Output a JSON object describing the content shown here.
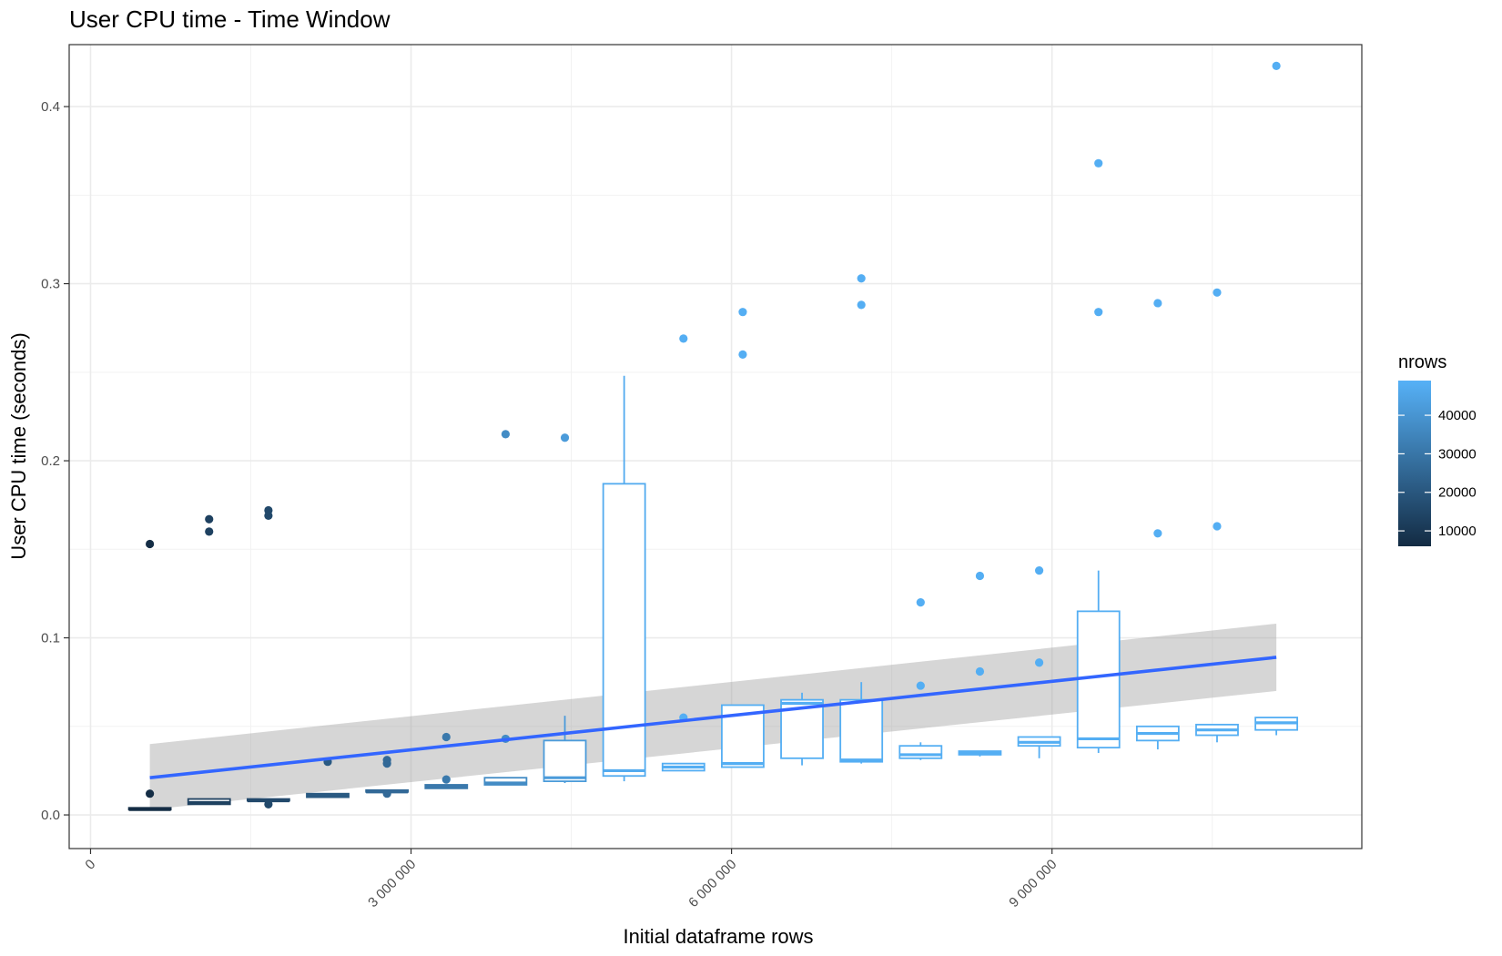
{
  "colors": {
    "low": "#132B43",
    "high": "#56B1F7",
    "trend": "#3366FF",
    "ribbon": "#999999",
    "grid_major": "#ebebeb",
    "grid_minor": "#f2f2f2",
    "panel_border": "#333333"
  },
  "chart_data": {
    "type": "boxplot",
    "title": "User CPU time - Time Window",
    "xlabel": "Initial dataframe rows",
    "ylabel": "User CPU time (seconds)",
    "xlim": [
      -200000,
      11900000
    ],
    "ylim": [
      -0.019,
      0.435
    ],
    "x_ticks": [
      0,
      3000000,
      6000000,
      9000000
    ],
    "x_tick_labels": [
      "0",
      "3 000 000",
      "6 000 000",
      "9 000 000"
    ],
    "x_minor_ticks": [
      1500000,
      4500000,
      7500000,
      10500000
    ],
    "y_ticks": [
      0.0,
      0.1,
      0.2,
      0.3,
      0.4
    ],
    "y_tick_labels": [
      "0.0",
      "0.1",
      "0.2",
      "0.3",
      "0.4"
    ],
    "y_minor_ticks": [
      0.05,
      0.15,
      0.25,
      0.35
    ],
    "grid": true,
    "legend": {
      "title": "nrows",
      "position": "right",
      "ticks": [
        10000,
        20000,
        30000,
        40000
      ],
      "tick_labels": [
        "10000",
        "20000",
        "30000",
        "40000"
      ],
      "range": [
        6000,
        49000
      ]
    },
    "boxes": [
      {
        "x": 555000,
        "nrows": 6500,
        "whisker_low": 0.003,
        "q1": 0.003,
        "median": 0.003,
        "q3": 0.004,
        "whisker_high": 0.004
      },
      {
        "x": 1110000,
        "nrows": 13000,
        "whisker_low": 0.006,
        "q1": 0.006,
        "median": 0.007,
        "q3": 0.009,
        "whisker_high": 0.009
      },
      {
        "x": 1665000,
        "nrows": 15500,
        "whisker_low": 0.008,
        "q1": 0.008,
        "median": 0.008,
        "q3": 0.009,
        "whisker_high": 0.009
      },
      {
        "x": 2220000,
        "nrows": 21000,
        "whisker_low": 0.01,
        "q1": 0.01,
        "median": 0.011,
        "q3": 0.012,
        "whisker_high": 0.012
      },
      {
        "x": 2775000,
        "nrows": 26000,
        "whisker_low": 0.012,
        "q1": 0.013,
        "median": 0.013,
        "q3": 0.014,
        "whisker_high": 0.014
      },
      {
        "x": 3330000,
        "nrows": 31000,
        "whisker_low": 0.015,
        "q1": 0.015,
        "median": 0.016,
        "q3": 0.017,
        "whisker_high": 0.017
      },
      {
        "x": 3885000,
        "nrows": 37000,
        "whisker_low": 0.017,
        "q1": 0.017,
        "median": 0.018,
        "q3": 0.021,
        "whisker_high": 0.021
      },
      {
        "x": 4440000,
        "nrows": 42000,
        "whisker_low": 0.018,
        "q1": 0.019,
        "median": 0.021,
        "q3": 0.042,
        "whisker_high": 0.056
      },
      {
        "x": 4995000,
        "nrows": 47000,
        "whisker_low": 0.019,
        "q1": 0.022,
        "median": 0.025,
        "q3": 0.187,
        "whisker_high": 0.248
      },
      {
        "x": 5550000,
        "nrows": 48000,
        "whisker_low": 0.025,
        "q1": 0.025,
        "median": 0.027,
        "q3": 0.029,
        "whisker_high": 0.029
      },
      {
        "x": 6105000,
        "nrows": 48000,
        "whisker_low": 0.027,
        "q1": 0.027,
        "median": 0.029,
        "q3": 0.062,
        "whisker_high": 0.062
      },
      {
        "x": 6660000,
        "nrows": 48000,
        "whisker_low": 0.028,
        "q1": 0.032,
        "median": 0.063,
        "q3": 0.065,
        "whisker_high": 0.069
      },
      {
        "x": 7215000,
        "nrows": 48000,
        "whisker_low": 0.029,
        "q1": 0.03,
        "median": 0.031,
        "q3": 0.065,
        "whisker_high": 0.075
      },
      {
        "x": 7770000,
        "nrows": 48000,
        "whisker_low": 0.031,
        "q1": 0.032,
        "median": 0.034,
        "q3": 0.039,
        "whisker_high": 0.041
      },
      {
        "x": 8325000,
        "nrows": 48000,
        "whisker_low": 0.033,
        "q1": 0.034,
        "median": 0.035,
        "q3": 0.036,
        "whisker_high": 0.036
      },
      {
        "x": 8880000,
        "nrows": 48000,
        "whisker_low": 0.032,
        "q1": 0.039,
        "median": 0.041,
        "q3": 0.044,
        "whisker_high": 0.044
      },
      {
        "x": 9435000,
        "nrows": 48000,
        "whisker_low": 0.035,
        "q1": 0.038,
        "median": 0.043,
        "q3": 0.115,
        "whisker_high": 0.138
      },
      {
        "x": 9990000,
        "nrows": 48000,
        "whisker_low": 0.037,
        "q1": 0.042,
        "median": 0.046,
        "q3": 0.05,
        "whisker_high": 0.05
      },
      {
        "x": 10545000,
        "nrows": 48000,
        "whisker_low": 0.041,
        "q1": 0.045,
        "median": 0.048,
        "q3": 0.051,
        "whisker_high": 0.051
      },
      {
        "x": 11100000,
        "nrows": 48000,
        "whisker_low": 0.045,
        "q1": 0.048,
        "median": 0.052,
        "q3": 0.055,
        "whisker_high": 0.055
      }
    ],
    "points": [
      {
        "x": 555000,
        "y": 0.153,
        "nrows": 6500
      },
      {
        "x": 555000,
        "y": 0.012,
        "nrows": 6500
      },
      {
        "x": 1110000,
        "y": 0.167,
        "nrows": 13000
      },
      {
        "x": 1110000,
        "y": 0.16,
        "nrows": 13000
      },
      {
        "x": 1665000,
        "y": 0.172,
        "nrows": 15500
      },
      {
        "x": 1665000,
        "y": 0.169,
        "nrows": 15500
      },
      {
        "x": 1665000,
        "y": 0.006,
        "nrows": 15500
      },
      {
        "x": 2220000,
        "y": 0.03,
        "nrows": 21000
      },
      {
        "x": 2775000,
        "y": 0.031,
        "nrows": 26000
      },
      {
        "x": 2775000,
        "y": 0.029,
        "nrows": 26000
      },
      {
        "x": 2775000,
        "y": 0.012,
        "nrows": 26000
      },
      {
        "x": 3330000,
        "y": 0.044,
        "nrows": 31000
      },
      {
        "x": 3330000,
        "y": 0.02,
        "nrows": 31000
      },
      {
        "x": 3885000,
        "y": 0.215,
        "nrows": 37000
      },
      {
        "x": 3885000,
        "y": 0.043,
        "nrows": 37000
      },
      {
        "x": 4440000,
        "y": 0.213,
        "nrows": 42000
      },
      {
        "x": 5550000,
        "y": 0.269,
        "nrows": 48000
      },
      {
        "x": 5550000,
        "y": 0.055,
        "nrows": 48000
      },
      {
        "x": 6105000,
        "y": 0.284,
        "nrows": 48000
      },
      {
        "x": 6105000,
        "y": 0.26,
        "nrows": 48000
      },
      {
        "x": 7215000,
        "y": 0.303,
        "nrows": 48000
      },
      {
        "x": 7215000,
        "y": 0.288,
        "nrows": 48000
      },
      {
        "x": 7770000,
        "y": 0.12,
        "nrows": 48000
      },
      {
        "x": 7770000,
        "y": 0.073,
        "nrows": 48000
      },
      {
        "x": 8325000,
        "y": 0.135,
        "nrows": 48000
      },
      {
        "x": 8325000,
        "y": 0.081,
        "nrows": 48000
      },
      {
        "x": 8880000,
        "y": 0.138,
        "nrows": 48000
      },
      {
        "x": 8880000,
        "y": 0.086,
        "nrows": 48000
      },
      {
        "x": 9435000,
        "y": 0.368,
        "nrows": 48000
      },
      {
        "x": 9435000,
        "y": 0.284,
        "nrows": 48000
      },
      {
        "x": 9990000,
        "y": 0.289,
        "nrows": 48000
      },
      {
        "x": 9990000,
        "y": 0.159,
        "nrows": 48000
      },
      {
        "x": 10545000,
        "y": 0.295,
        "nrows": 48000
      },
      {
        "x": 10545000,
        "y": 0.163,
        "nrows": 48000
      },
      {
        "x": 11100000,
        "y": 0.423,
        "nrows": 48000
      }
    ],
    "trend": {
      "x": [
        555000,
        11100000
      ],
      "y": [
        0.021,
        0.089
      ],
      "ribbon_upper": [
        0.04,
        0.108
      ],
      "ribbon_lower": [
        0.003,
        0.07
      ]
    }
  }
}
